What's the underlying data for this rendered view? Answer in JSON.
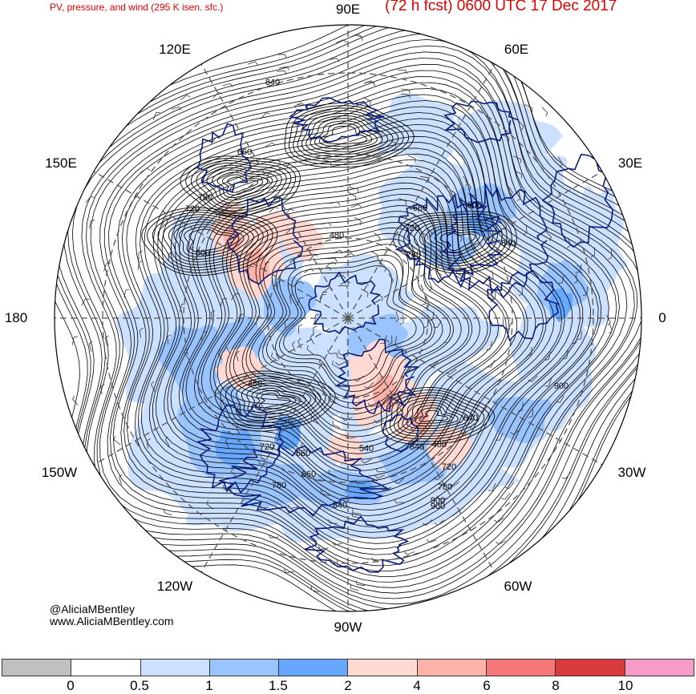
{
  "header": {
    "left_title": "PV, pressure, and wind (295 K isen. sfc.)",
    "right_title": "(72 h fcst) 0600 UTC 17 Dec 2017"
  },
  "longitude_labels": [
    {
      "id": "90e",
      "text": "90E"
    },
    {
      "id": "60e",
      "text": "60E"
    },
    {
      "id": "30e",
      "text": "30E"
    },
    {
      "id": "0",
      "text": "0"
    },
    {
      "id": "30w",
      "text": "30W"
    },
    {
      "id": "60w",
      "text": "60W"
    },
    {
      "id": "90w",
      "text": "90W"
    },
    {
      "id": "120w",
      "text": "120W"
    },
    {
      "id": "150w",
      "text": "150W"
    },
    {
      "id": "180",
      "text": "180"
    },
    {
      "id": "150e",
      "text": "150E"
    },
    {
      "id": "120e",
      "text": "120E"
    }
  ],
  "contour_labels": [
    "660",
    "840",
    "780",
    "720",
    "600",
    "480",
    "660",
    "720",
    "780",
    "600",
    "840",
    "840",
    "900",
    "480",
    "840",
    "540",
    "660",
    "720",
    "780",
    "900",
    "480",
    "660",
    "720",
    "780",
    "840",
    "900"
  ],
  "credit": {
    "handle": "@AliciaMBentley",
    "site": "www.AliciaMBentley.com"
  },
  "colorbar": {
    "colors": [
      "#c0c0c0",
      "#ffffff",
      "#cce0ff",
      "#99c4ff",
      "#66a8ff",
      "#ffd9d2",
      "#ffb3a8",
      "#f77878",
      "#d93a3a",
      "#f59cc8"
    ],
    "tick_labels": [
      "0",
      "0.5",
      "1",
      "1.5",
      "2",
      "4",
      "6",
      "8",
      "10"
    ]
  }
}
